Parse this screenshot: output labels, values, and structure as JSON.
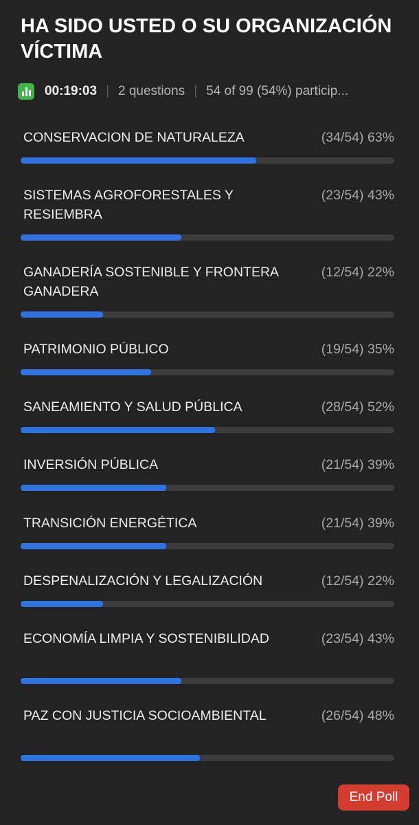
{
  "poll": {
    "title": "HA SIDO USTED O SU ORGANIZACIÓN VÍCTIMA",
    "timer": "00:19:03",
    "questions": "2 questions",
    "participants": "54 of 99 (54%) particip..."
  },
  "options": [
    {
      "label": "CONSERVACION DE NATURALEZA",
      "result": "(34/54) 63%",
      "fraction": 0.63
    },
    {
      "label": "SISTEMAS AGROFORESTALES Y RESIEMBRA",
      "result": "(23/54) 43%",
      "fraction": 0.43
    },
    {
      "label": "GANADERÍA SOSTENIBLE Y FRONTERA GANADERA",
      "result": "(12/54) 22%",
      "fraction": 0.22
    },
    {
      "label": "PATRIMONIO PÚBLICO",
      "result": "(19/54) 35%",
      "fraction": 0.35
    },
    {
      "label": "SANEAMIENTO Y SALUD PÚBLICA",
      "result": "(28/54) 52%",
      "fraction": 0.52
    },
    {
      "label": "INVERSIÓN PÚBLICA",
      "result": "(21/54) 39%",
      "fraction": 0.39
    },
    {
      "label": "TRANSICIÓN ENERGÉTICA",
      "result": "(21/54) 39%",
      "fraction": 0.39
    },
    {
      "label": "DESPENALIZACIÓN Y LEGALIZACIÓN",
      "result": "(12/54) 22%",
      "fraction": 0.22
    },
    {
      "label": "ECONOMÍA LIMPIA Y SOSTENIBILIDAD",
      "result": "(23/54) 43%",
      "fraction": 0.43
    },
    {
      "label": "PAZ CON JUSTICIA SOCIOAMBIENTAL",
      "result": "(26/54) 48%",
      "fraction": 0.48
    }
  ],
  "actions": {
    "end_poll_label": "End Poll"
  },
  "colors": {
    "background": "#232323",
    "bar_fill": "#2f73e0",
    "bar_track": "#3c3c3c",
    "end_button": "#d43c30",
    "poll_icon": "#3fb54a"
  }
}
